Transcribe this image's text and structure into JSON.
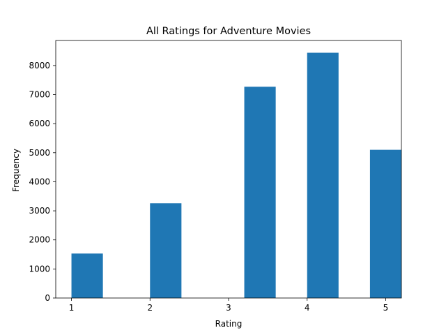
{
  "chart_data": {
    "type": "bar",
    "title": "All Ratings for Adventure Movies",
    "xlabel": "Rating",
    "ylabel": "Frequency",
    "x": [
      1,
      2,
      3,
      4,
      5
    ],
    "series": [
      {
        "bins": [
          {
            "start": 1.0,
            "end": 1.4,
            "value": 1530
          },
          {
            "start": 2.0,
            "end": 2.4,
            "value": 3260
          },
          {
            "start": 3.2,
            "end": 3.6,
            "value": 7270
          },
          {
            "start": 4.0,
            "end": 4.4,
            "value": 8440
          },
          {
            "start": 4.8,
            "end": 5.2,
            "value": 5100
          }
        ]
      }
    ],
    "xlim": [
      0.8,
      5.2
    ],
    "ylim": [
      0,
      8862
    ],
    "xticks": [
      "1",
      "2",
      "3",
      "4",
      "5"
    ],
    "yticks": [
      "0",
      "1000",
      "2000",
      "3000",
      "4000",
      "5000",
      "6000",
      "7000",
      "8000"
    ],
    "grid": false,
    "legend": "none",
    "colors": {
      "bar": "#1f77b4",
      "axis": "#000000",
      "text": "#000000"
    }
  }
}
